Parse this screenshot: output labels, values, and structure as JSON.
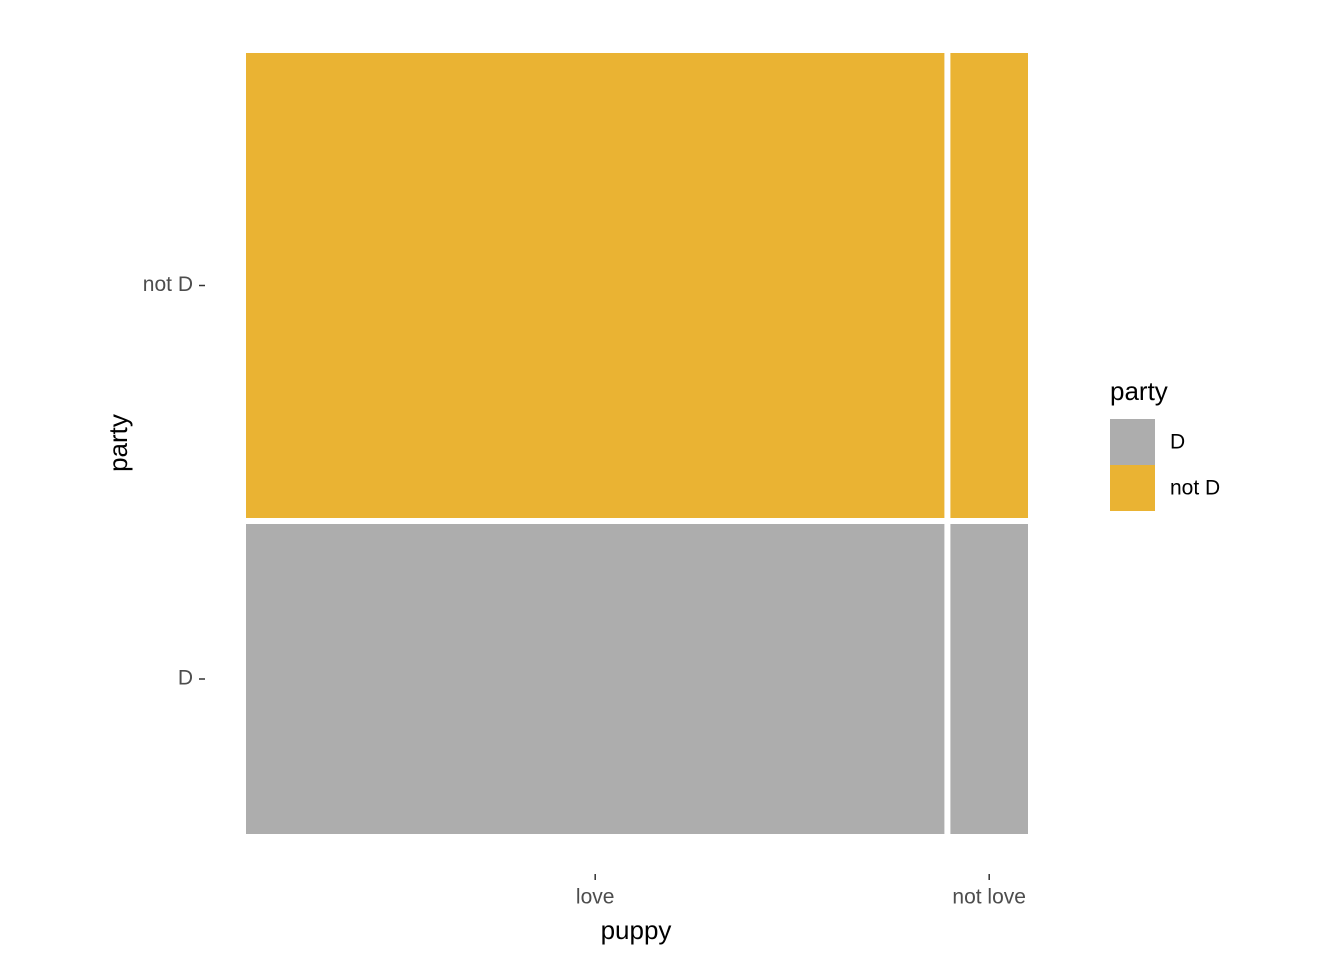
{
  "chart_data": {
    "type": "mosaic",
    "x_label": "puppy",
    "y_label": "party",
    "legend_title": "party",
    "categories": [
      "love",
      "not love"
    ],
    "series": [
      {
        "name": "D",
        "color": "#adadad",
        "values": [
          0.36,
          0.04
        ]
      },
      {
        "name": "not D",
        "color": "#eab333",
        "values": [
          0.54,
          0.06
        ]
      }
    ],
    "legend_position": "right"
  }
}
